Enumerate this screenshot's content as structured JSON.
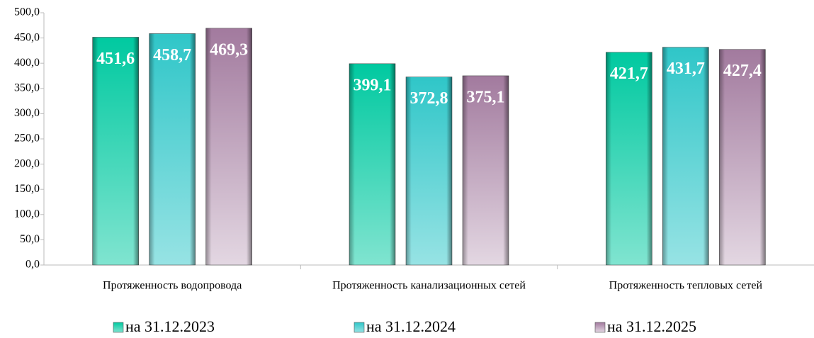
{
  "chart_data": {
    "type": "bar",
    "categories": [
      "Протяженность водопровода",
      "Протяженность канализационных сетей",
      "Протяженность тепловых сетей"
    ],
    "series": [
      {
        "name": "на 31.12.2023",
        "color": "#00c9a0",
        "values": [
          451.6,
          399.1,
          421.7
        ],
        "value_labels": [
          "451,6",
          "399,1",
          "421,7"
        ]
      },
      {
        "name": "на 31.12.2024",
        "color": "#2fc6c8",
        "values": [
          458.7,
          372.8,
          431.7
        ],
        "value_labels": [
          "458,7",
          "372,8",
          "431,7"
        ]
      },
      {
        "name": "на 31.12.2025",
        "color": "#a27a9e",
        "values": [
          469.3,
          375.1,
          427.4
        ],
        "value_labels": [
          "469,3",
          "375,1",
          "427,4"
        ]
      }
    ],
    "ylim": [
      0,
      500
    ],
    "yticks": [
      {
        "value": 0,
        "label": "0,0"
      },
      {
        "value": 50,
        "label": "50,0"
      },
      {
        "value": 100,
        "label": "100,0"
      },
      {
        "value": 150,
        "label": "150,0"
      },
      {
        "value": 200,
        "label": "200,0"
      },
      {
        "value": 250,
        "label": "250,0"
      },
      {
        "value": 300,
        "label": "300,0"
      },
      {
        "value": 350,
        "label": "350,0"
      },
      {
        "value": 400,
        "label": "400,0"
      },
      {
        "value": 450,
        "label": "450,0"
      },
      {
        "value": 500,
        "label": "500,0"
      }
    ],
    "grid": false,
    "legend": "bottom"
  }
}
